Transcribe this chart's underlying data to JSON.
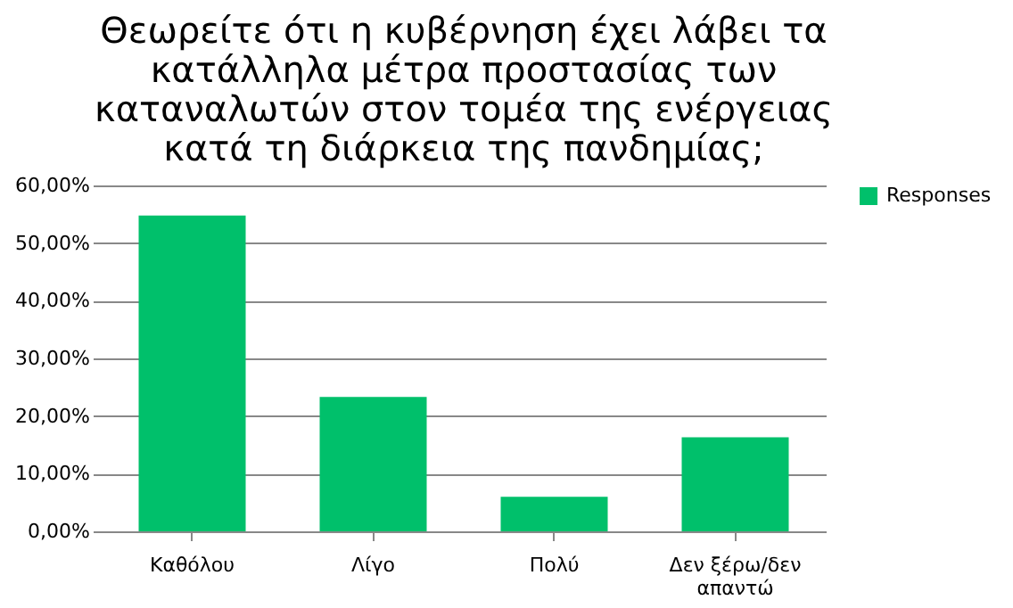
{
  "chart_data": {
    "type": "bar",
    "title": "Θεωρείτε ότι η κυβέρνηση έχει λάβει τα κατάλληλα μέτρα προστασίας των καταναλωτών στον τομέα της ενέργειας κατά τη διάρκεια της πανδημίας;",
    "categories": [
      "Καθόλου",
      "Λίγο",
      "Πολύ",
      "Δεν ξέρω/δεν απαντώ"
    ],
    "series": [
      {
        "name": "Responses",
        "color": "#00c06b",
        "values": [
          54.8,
          23.3,
          6.0,
          16.3
        ]
      }
    ],
    "ylim": [
      0,
      60
    ],
    "yticks": [
      {
        "value": 0,
        "label": "0,00%"
      },
      {
        "value": 10,
        "label": "10,00%"
      },
      {
        "value": 20,
        "label": "20,00%"
      },
      {
        "value": 30,
        "label": "30,00%"
      },
      {
        "value": 40,
        "label": "40,00%"
      },
      {
        "value": 50,
        "label": "50,00%"
      },
      {
        "value": 60,
        "label": "60,00%"
      }
    ],
    "grid": "y",
    "legend": "right"
  }
}
